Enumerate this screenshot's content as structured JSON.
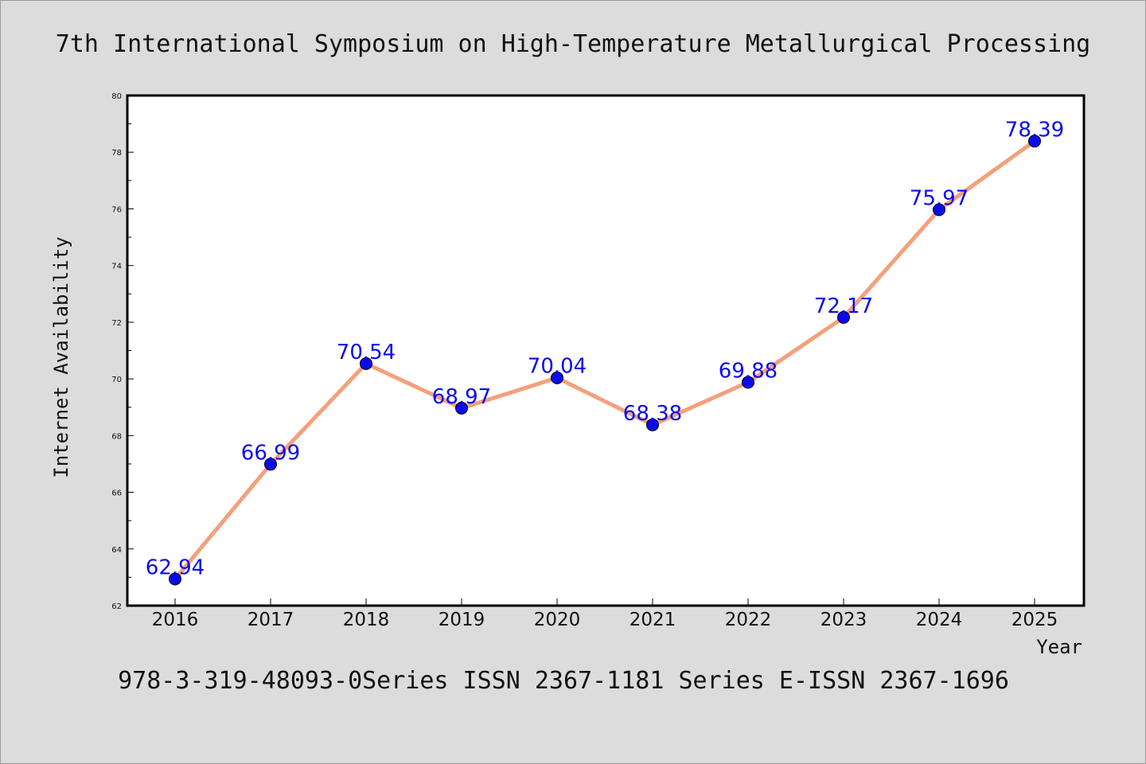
{
  "chart_data": {
    "type": "line",
    "title": "7th International Symposium on High-Temperature Metallurgical Processing",
    "footer": "978-3-319-48093-0Series ISSN 2367-1181 Series E-ISSN 2367-1696",
    "xlabel": "Year",
    "ylabel": "Internet Availability",
    "categories": [
      "2016",
      "2017",
      "2018",
      "2019",
      "2020",
      "2021",
      "2022",
      "2023",
      "2024",
      "2025"
    ],
    "values": [
      62.94,
      66.99,
      70.54,
      68.97,
      70.04,
      68.38,
      69.88,
      72.17,
      75.97,
      78.39
    ],
    "data_labels": [
      "62.94",
      "66.99",
      "70.54",
      "68.97",
      "70.04",
      "68.38",
      "69.88",
      "72.17",
      "75.97",
      "78.39"
    ],
    "ylim": [
      62,
      80
    ],
    "yticks": [
      62,
      64,
      66,
      68,
      70,
      72,
      74,
      76,
      78,
      80
    ],
    "grid": false,
    "legend": "none",
    "colors": {
      "line": "#f4a07c",
      "marker": "#0a0aee",
      "marker_edge": "#000000",
      "data_label": "#0a0aee",
      "background": "#dcdcdc",
      "plot_background": "#ffffff",
      "axis": "#000000"
    }
  }
}
